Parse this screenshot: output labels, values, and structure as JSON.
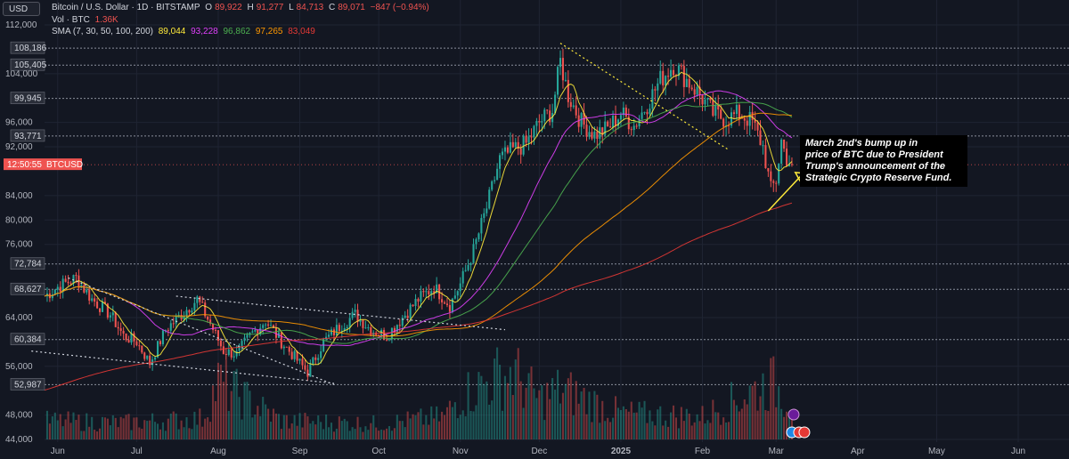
{
  "header": {
    "currency_button": "USD",
    "title": "Bitcoin / U.S. Dollar · 1D · BITSTAMP",
    "open_label": "O",
    "open": "89,922",
    "high_label": "H",
    "high": "91,277",
    "low_label": "L",
    "low": "84,713",
    "close_label": "C",
    "close": "89,071",
    "change": "−847 (−0.94%)",
    "volume_label": "Vol · BTC",
    "volume": "1.36K",
    "sma_label": "SMA (7, 30, 50, 100, 200)",
    "sma_values": [
      "89,044",
      "93,228",
      "96,862",
      "97,265",
      "83,049"
    ]
  },
  "colors": {
    "background": "#131722",
    "up": "#26a69a",
    "down": "#ef5350",
    "sma7": "#ffeb3b",
    "sma30": "#e040fb",
    "sma50": "#4caf50",
    "sma100": "#ff9800",
    "sma200": "#e53935"
  },
  "annotation": "March 2nd's bump up in\nprice of BTC due to President\n Trump's announcement of the\n Strategic Crypto Reserve Fund.",
  "chart_data": {
    "type": "candlestick",
    "symbol": "BTCUSD",
    "timeframe": "1D",
    "ylim": [
      44000,
      112000
    ],
    "y_ticks": [
      "112,000",
      "104,000",
      "96,000",
      "92,000",
      "84,000",
      "80,000",
      "76,000",
      "64,000",
      "56,000",
      "48,000",
      "44,000"
    ],
    "y_tick_values": [
      112000,
      104000,
      96000,
      92000,
      84000,
      80000,
      76000,
      64000,
      56000,
      48000,
      44000
    ],
    "price_levels": [
      {
        "label": "108,186",
        "value": 108186
      },
      {
        "label": "105,405",
        "value": 105405
      },
      {
        "label": "99,945",
        "value": 99945
      },
      {
        "label": "93,771",
        "value": 93771
      },
      {
        "label": "72,784",
        "value": 72784
      },
      {
        "label": "68,627",
        "value": 68627
      },
      {
        "label": "60,384",
        "value": 60384
      },
      {
        "label": "52,987",
        "value": 52987
      }
    ],
    "current_price_label": {
      "time": "12:50:55",
      "symbol": "BTCUSD",
      "value": 89071
    },
    "x_labels": [
      "Jun",
      "Jul",
      "Aug",
      "Sep",
      "Oct",
      "Nov",
      "Dec",
      "2025",
      "Feb",
      "Mar",
      "Apr",
      "May",
      "Jun"
    ],
    "x_label_days": [
      5,
      35,
      66,
      97,
      127,
      158,
      188,
      219,
      250,
      278,
      309,
      339,
      370
    ],
    "close_anchors": [
      [
        0,
        67500
      ],
      [
        5,
        69000
      ],
      [
        12,
        70500
      ],
      [
        18,
        67000
      ],
      [
        25,
        64500
      ],
      [
        30,
        61000
      ],
      [
        35,
        60000
      ],
      [
        40,
        56500
      ],
      [
        46,
        62000
      ],
      [
        52,
        64500
      ],
      [
        58,
        67000
      ],
      [
        63,
        63000
      ],
      [
        68,
        58500
      ],
      [
        73,
        58000
      ],
      [
        78,
        61000
      ],
      [
        84,
        63500
      ],
      [
        90,
        60000
      ],
      [
        95,
        57500
      ],
      [
        100,
        55000
      ],
      [
        106,
        60000
      ],
      [
        112,
        62500
      ],
      [
        118,
        64500
      ],
      [
        124,
        62000
      ],
      [
        130,
        61000
      ],
      [
        136,
        64000
      ],
      [
        142,
        67000
      ],
      [
        148,
        69000
      ],
      [
        154,
        66000
      ],
      [
        158,
        69500
      ],
      [
        163,
        75000
      ],
      [
        168,
        82000
      ],
      [
        173,
        90000
      ],
      [
        178,
        91500
      ],
      [
        183,
        92500
      ],
      [
        188,
        96000
      ],
      [
        193,
        98000
      ],
      [
        196,
        106000
      ],
      [
        199,
        100500
      ],
      [
        204,
        96000
      ],
      [
        209,
        94000
      ],
      [
        214,
        95000
      ],
      [
        219,
        97500
      ],
      [
        224,
        95500
      ],
      [
        229,
        99000
      ],
      [
        234,
        103000
      ],
      [
        239,
        105500
      ],
      [
        244,
        103000
      ],
      [
        249,
        100500
      ],
      [
        254,
        97500
      ],
      [
        259,
        96500
      ],
      [
        264,
        97500
      ],
      [
        269,
        96000
      ],
      [
        273,
        92000
      ],
      [
        276,
        85000
      ],
      [
        278,
        86500
      ],
      [
        280,
        93000
      ],
      [
        282,
        90000
      ],
      [
        284,
        89071
      ]
    ],
    "volume_anchors": [
      [
        0,
        0.18
      ],
      [
        30,
        0.16
      ],
      [
        60,
        0.2
      ],
      [
        66,
        0.55
      ],
      [
        90,
        0.18
      ],
      [
        127,
        0.15
      ],
      [
        152,
        0.22
      ],
      [
        158,
        0.42
      ],
      [
        165,
        0.5
      ],
      [
        170,
        0.58
      ],
      [
        178,
        0.65
      ],
      [
        188,
        0.38
      ],
      [
        196,
        0.48
      ],
      [
        219,
        0.25
      ],
      [
        250,
        0.22
      ],
      [
        276,
        0.55
      ],
      [
        284,
        0.35
      ]
    ],
    "series": [
      {
        "name": "SMA 7",
        "period": 7,
        "value": 89044
      },
      {
        "name": "SMA 30",
        "period": 30,
        "value": 93228
      },
      {
        "name": "SMA 50",
        "period": 50,
        "value": 96862
      },
      {
        "name": "SMA 100",
        "period": 100,
        "value": 97265
      },
      {
        "name": "SMA 200",
        "period": 200,
        "value": 83049
      }
    ],
    "trendlines": [
      {
        "style": "dotted",
        "color": "#cfd3dc",
        "from": [
          9,
          70500
        ],
        "to": [
          110,
          53000
        ]
      },
      {
        "style": "dotted",
        "color": "#cfd3dc",
        "from": [
          -5,
          58500
        ],
        "to": [
          110,
          53200
        ]
      },
      {
        "style": "dotted",
        "color": "#cfd3dc",
        "from": [
          50,
          67500
        ],
        "to": [
          175,
          62000
        ]
      },
      {
        "style": "dotted",
        "color": "#ffeb3b",
        "from": [
          196,
          109000
        ],
        "to": [
          260,
          91500
        ]
      },
      {
        "style": "solid",
        "color": "#ffeb3b",
        "from": [
          275,
          81500
        ],
        "to": [
          288,
          87500
        ]
      }
    ]
  }
}
